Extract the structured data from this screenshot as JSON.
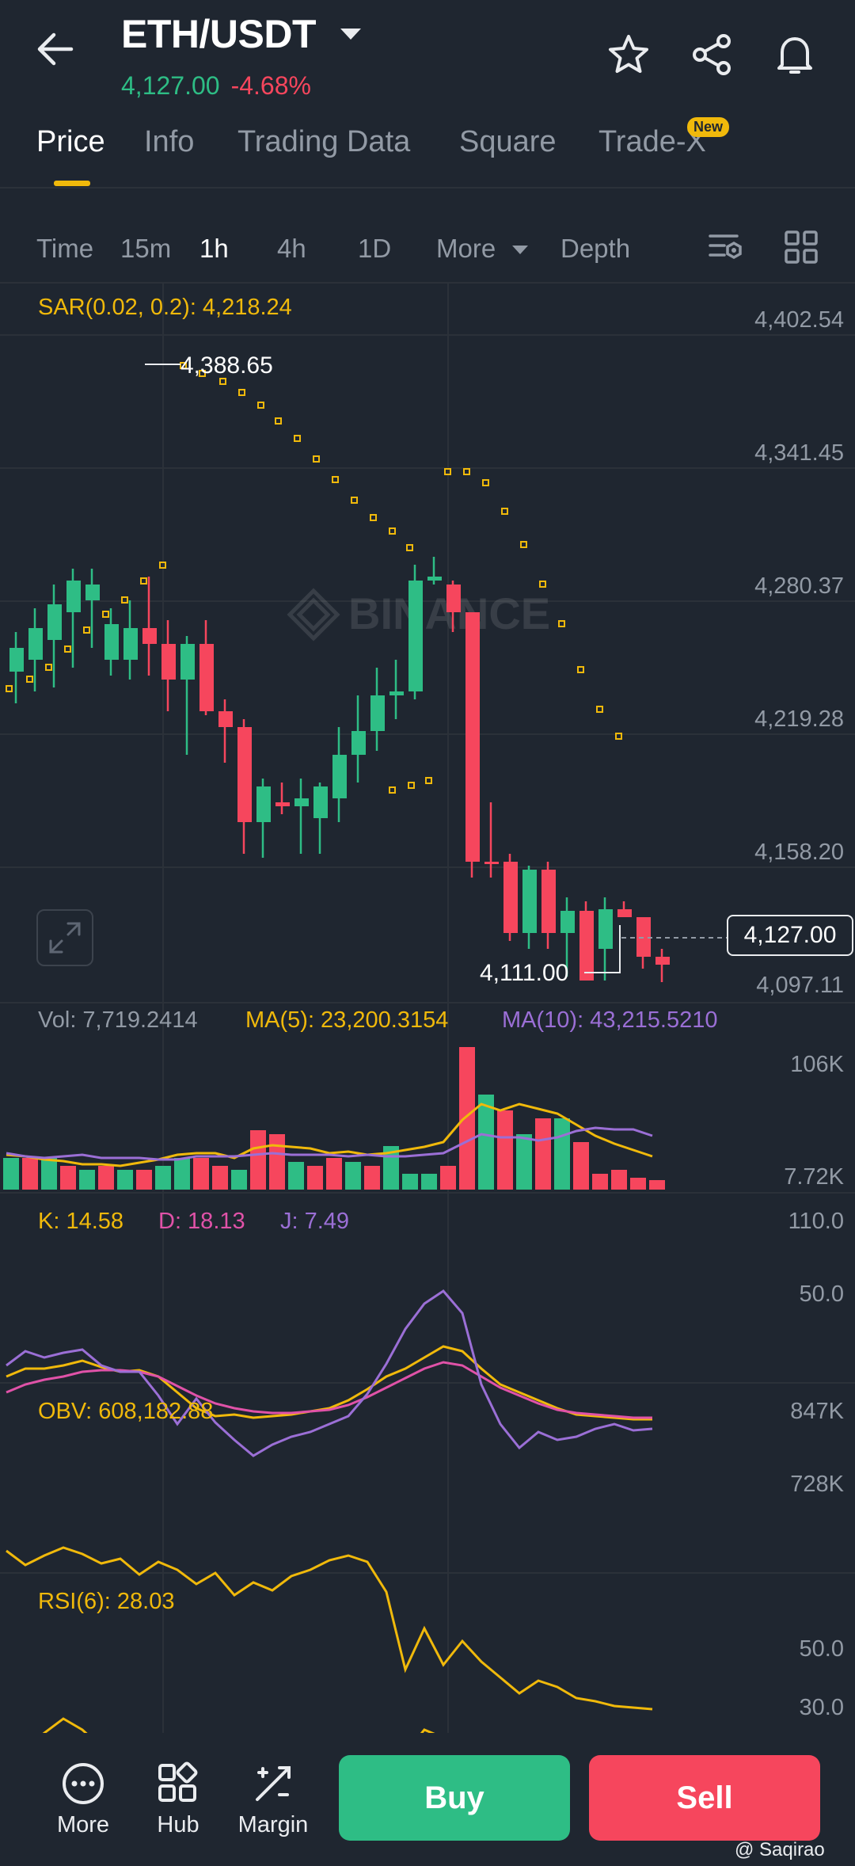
{
  "header": {
    "pair": "ETH/USDT",
    "price": "4,127.00",
    "change": "-4.68%"
  },
  "tabs": [
    {
      "label": "Price"
    },
    {
      "label": "Info"
    },
    {
      "label": "Trading Data"
    },
    {
      "label": "Square"
    },
    {
      "label": "Trade-X"
    }
  ],
  "new_badge": "New",
  "timeframes": {
    "time": "Time",
    "m15": "15m",
    "h1": "1h",
    "h4": "4h",
    "d1": "1D",
    "more": "More",
    "depth": "Depth"
  },
  "main_chart": {
    "sar_label": "SAR(0.02, 0.2): 4,218.24",
    "axis": [
      "4,402.54",
      "4,341.45",
      "4,280.37",
      "4,219.28",
      "4,158.20",
      "4,097.11"
    ],
    "high_label": "4,388.65",
    "low_label": "4,111.00",
    "current_price": "4,127.00",
    "watermark": "BINANCE"
  },
  "volume": {
    "vol": "Vol: 7,719.2414",
    "ma5": "MA(5): 23,200.3154",
    "ma10": "MA(10): 43,215.5210",
    "axis_top": "106K",
    "axis_bottom": "7.72K"
  },
  "kdj": {
    "k": "K: 14.58",
    "d": "D: 18.13",
    "j": "J: 7.49",
    "axis_top": "110.0",
    "axis_mid": "50.0"
  },
  "obv": {
    "label": "OBV: 608,182.88",
    "axis_top": "847K",
    "axis_mid": "728K"
  },
  "rsi": {
    "label": "RSI(6): 28.03",
    "axis_top": "50.0",
    "axis_bottom": "30.0"
  },
  "bottom_nav": {
    "more": "More",
    "hub": "Hub",
    "margin": "Margin",
    "buy": "Buy",
    "sell": "Sell"
  },
  "credit": "@ Saqirao",
  "colors": {
    "up": "#2ebd85",
    "down": "#f6465d",
    "accent": "#f0b90b",
    "purple": "#9b6fd6",
    "pink": "#e052a8"
  }
}
